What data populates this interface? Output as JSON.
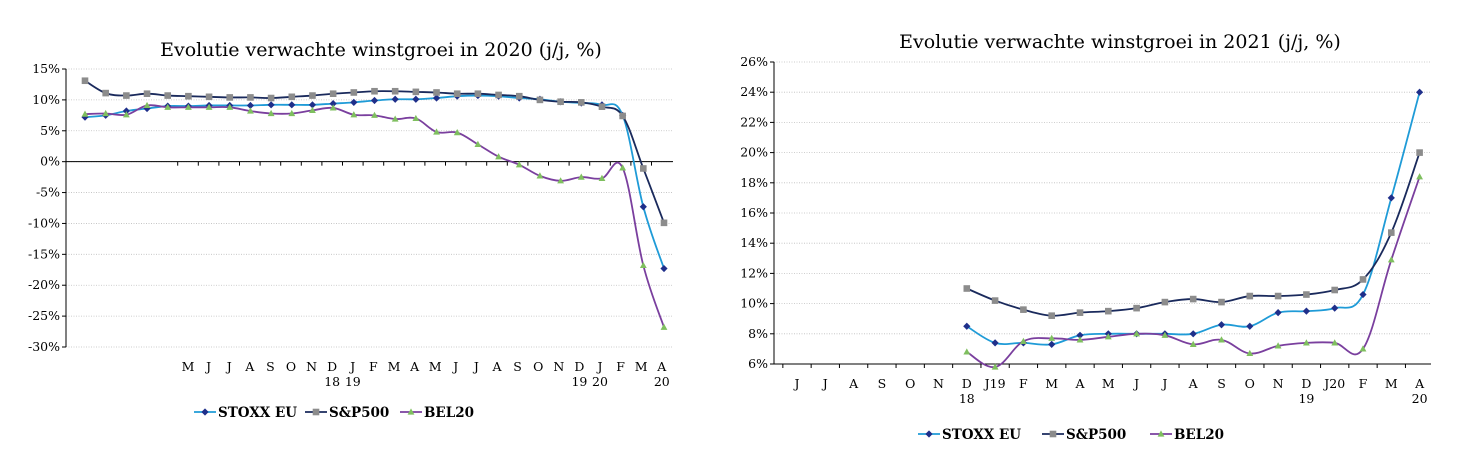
{
  "colors": {
    "stoxx": "#1f2f8a",
    "stoxx_line": "#1f9bd7",
    "sp500": "#8c8c8c",
    "sp500_line": "#1a2a5c",
    "bel20": "#7fbf5f",
    "bel20_line": "#7a3f9e",
    "grid": "#bfbfbf"
  },
  "chart_data": [
    {
      "type": "line",
      "title": "Evolutie verwachte winstgroei in 2020 (j/j, %)",
      "xlabel": "",
      "ylabel": "",
      "ylim": [
        -30,
        15
      ],
      "y_ticks": [
        "15%",
        "10%",
        "5%",
        "0%",
        "-5%",
        "-10%",
        "-15%",
        "-20%",
        "-25%",
        "-30%"
      ],
      "x_ticks": [
        "M",
        "J",
        "J",
        "A",
        "S",
        "O",
        "N",
        "D",
        "J",
        "F",
        "M",
        "A",
        "M",
        "J",
        "J",
        "A",
        "S",
        "O",
        "N",
        "D",
        "J",
        "F",
        "M",
        "A"
      ],
      "x_ticks_sub": {
        "7": "18",
        "8": "19",
        "19": "19",
        "20": "20",
        "23": "20"
      },
      "legend": {
        "position": "bottom",
        "entries": [
          "STOXX EU",
          "S&P500",
          "BEL20"
        ]
      },
      "grid": true,
      "series": [
        {
          "name": "STOXX EU",
          "values": [
            7.2,
            7.5,
            8.2,
            8.6,
            9.0,
            9.0,
            9.1,
            9.1,
            9.1,
            9.2,
            9.2,
            9.2,
            9.4,
            9.6,
            9.9,
            10.1,
            10.1,
            10.3,
            10.6,
            10.7,
            10.6,
            10.3,
            10.1,
            9.7,
            9.5,
            9.2,
            7.5,
            -7.3,
            -17.3
          ]
        },
        {
          "name": "S&P500",
          "values": [
            13.1,
            11.1,
            10.7,
            11.0,
            10.7,
            10.6,
            10.5,
            10.4,
            10.4,
            10.3,
            10.5,
            10.7,
            11.0,
            11.2,
            11.4,
            11.4,
            11.3,
            11.2,
            11.0,
            11.0,
            10.8,
            10.6,
            10.0,
            9.7,
            9.6,
            8.9,
            7.4,
            -1.1,
            -9.9
          ]
        },
        {
          "name": "BEL20",
          "values": [
            7.7,
            7.8,
            7.6,
            9.1,
            8.8,
            8.8,
            8.8,
            8.8,
            8.2,
            7.8,
            7.8,
            8.3,
            8.7,
            7.6,
            7.5,
            6.9,
            7.0,
            4.8,
            4.7,
            2.8,
            0.8,
            -0.5,
            -2.3,
            -3.1,
            -2.5,
            -2.7,
            -1.0,
            -16.8,
            -26.8
          ]
        }
      ]
    },
    {
      "type": "line",
      "title": "Evolutie verwachte winstgroei in 2021 (j/j, %)",
      "xlabel": "",
      "ylabel": "",
      "ylim": [
        6,
        26
      ],
      "y_ticks": [
        "26%",
        "24%",
        "22%",
        "20%",
        "18%",
        "16%",
        "14%",
        "12%",
        "10%",
        "8%",
        "6%"
      ],
      "x_ticks": [
        "J",
        "J",
        "A",
        "S",
        "O",
        "N",
        "D",
        "J19",
        "F",
        "M",
        "A",
        "M",
        "J",
        "J",
        "A",
        "S",
        "O",
        "N",
        "D",
        "J20",
        "F",
        "M",
        "A"
      ],
      "x_ticks_sub": {
        "6": "18",
        "18": "19",
        "22": "20"
      },
      "legend": {
        "position": "bottom",
        "entries": [
          "STOXX EU",
          "S&P500",
          "BEL20"
        ]
      },
      "grid": true,
      "series": [
        {
          "name": "STOXX EU",
          "start_tick": 6,
          "values": [
            8.5,
            7.4,
            7.4,
            7.3,
            7.9,
            8.0,
            8.0,
            8.0,
            8.0,
            8.6,
            8.5,
            9.4,
            9.5,
            9.7,
            10.6,
            17.0,
            24.0
          ]
        },
        {
          "name": "S&P500",
          "start_tick": 6,
          "values": [
            11.0,
            10.2,
            9.6,
            9.2,
            9.4,
            9.5,
            9.7,
            10.1,
            10.3,
            10.1,
            10.5,
            10.5,
            10.6,
            10.9,
            11.6,
            14.7,
            20.0
          ]
        },
        {
          "name": "BEL20",
          "start_tick": 6,
          "values": [
            6.8,
            5.8,
            7.5,
            7.7,
            7.6,
            7.8,
            8.0,
            7.9,
            7.3,
            7.6,
            6.7,
            7.2,
            7.4,
            7.4,
            7.0,
            12.9,
            18.4
          ]
        }
      ]
    }
  ]
}
